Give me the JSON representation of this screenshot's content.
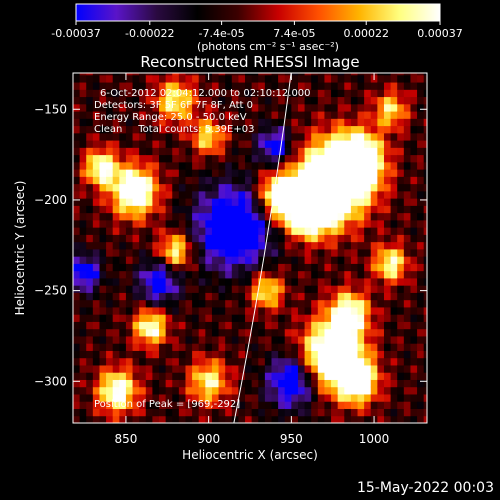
{
  "colorbar": {
    "ticks": [
      "-0.00037",
      "-0.00022",
      "-7.4e-05",
      "7.4e-05",
      "0.00022",
      "0.00037"
    ],
    "unit_label": "(photons cm⁻² s⁻¹ asec⁻²)",
    "stops": [
      "#0000ff",
      "#5a14c8",
      "#2a0a40",
      "#000000",
      "#3c0000",
      "#c80000",
      "#ff5000",
      "#ffb400",
      "#ffff80",
      "#ffffff"
    ]
  },
  "chart_data": {
    "type": "heatmap",
    "title": "Reconstructed RHESSI Image",
    "xlabel": "Heliocentric X (arcsec)",
    "ylabel": "Heliocentric Y (arcsec)",
    "xlim": [
      818,
      1032
    ],
    "ylim": [
      -323,
      -130
    ],
    "xticks": [
      850,
      900,
      950,
      1000
    ],
    "yticks": [
      -150,
      -200,
      -250,
      -300
    ],
    "value_range": [
      -0.00037,
      0.00037
    ],
    "annotations": [
      "6-Oct-2012 02:04:12.000 to 02:10:12.000",
      "Detectors: 3F 5F 6F 7F 8F, Att 0",
      "Energy Range: 25.0 - 50.0 keV",
      "Clean     Total counts: 5.39E+03"
    ],
    "peak_label": "Position of Peak = [969,-292]",
    "peak": [
      969,
      -292
    ],
    "limb_x_at_top": 950,
    "limb_x_at_bottom": 915
  },
  "footer": {
    "timestamp": "15-May-2022 00:03"
  }
}
